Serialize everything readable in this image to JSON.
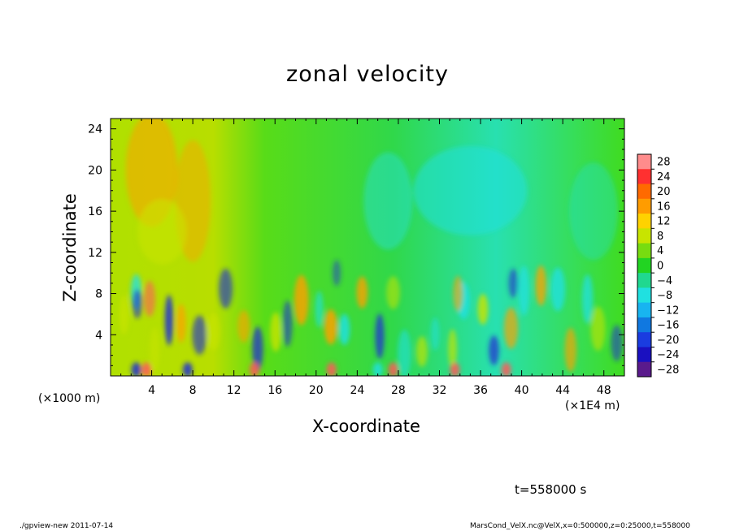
{
  "footer": {
    "left": "./gpview-new  2011-07-14",
    "right": "MarsCond_VelX.nc@VelX,x=0:500000,z=0:25000,t=558000"
  },
  "time_label": "t=558000 s",
  "chart_data": {
    "type": "heatmap",
    "title": "zonal velocity",
    "xlabel": "X-coordinate",
    "ylabel": "Z-coordinate",
    "x_unit_left": "(×1000 m)",
    "x_unit_right": "(×1E4 m)",
    "xlim": [
      0,
      50
    ],
    "ylim": [
      0,
      25
    ],
    "x_ticks": [
      4,
      8,
      12,
      16,
      20,
      24,
      28,
      32,
      36,
      40,
      44,
      48
    ],
    "y_ticks": [
      4,
      8,
      12,
      16,
      20,
      24
    ],
    "colorbar": {
      "labels": [
        "28",
        "24",
        "20",
        "16",
        "12",
        "8",
        "4",
        "0",
        "−4",
        "−8",
        "−12",
        "−16",
        "−20",
        "−24",
        "−28"
      ],
      "range": [
        -30,
        30
      ],
      "levels": 15
    },
    "colors": {
      "strong_negative": "#5a1a8c",
      "negative": "#1f2fd0",
      "weak_negative": "#20e0e0",
      "near_zero": "#22d422",
      "weak_positive": "#c8e400",
      "positive": "#ffa000",
      "strong_positive": "#ff5a5a"
    }
  }
}
